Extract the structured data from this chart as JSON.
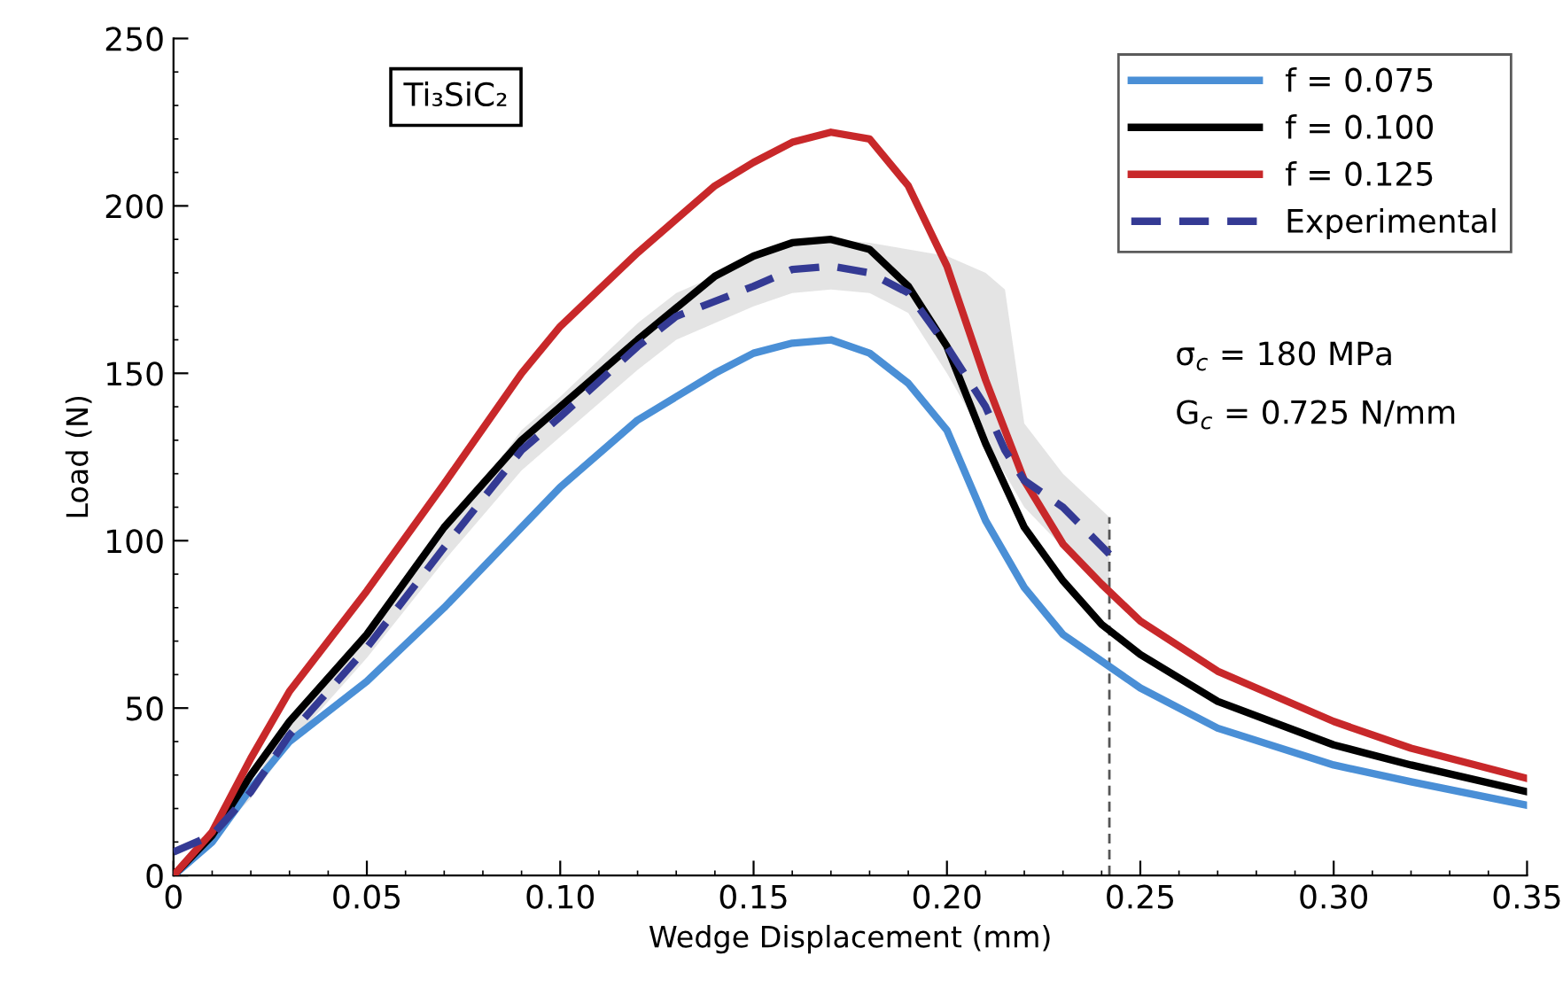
{
  "chart_data": {
    "type": "line",
    "xlabel": "Wedge Displacement (mm)",
    "ylabel": "Load (N)",
    "annotations": [
      "Ti₃SiC₂",
      "σ$_{c}$ = 180 MPa",
      "G$_{c}$ = 0.725 N/mm"
    ],
    "xlim": [
      0,
      0.35
    ],
    "ylim": [
      0,
      250
    ],
    "xticks": [
      0,
      {
        "value": 0.05,
        "label": "0.05"
      },
      {
        "value": 0.1,
        "label": "0.10"
      },
      {
        "value": 0.15,
        "label": "0.15"
      },
      {
        "value": 0.2,
        "label": "0.20"
      },
      {
        "value": 0.25,
        "label": "0.25"
      },
      {
        "value": 0.3,
        "label": "0.30"
      },
      {
        "value": 0.35,
        "label": "0.35"
      }
    ],
    "yticks": [
      0,
      50,
      100,
      150,
      200,
      250
    ],
    "grid": false,
    "legend": "top right",
    "ref_lines": [
      {
        "axis": "x",
        "value": 0.242,
        "color": "#555555",
        "line_style": "dashed"
      }
    ],
    "series": [
      {
        "name": "f = 0.075",
        "color": "#4a8fd6",
        "line_style": "solid",
        "x": [
          0,
          0.01,
          0.02,
          0.03,
          0.05,
          0.07,
          0.09,
          0.1,
          0.12,
          0.14,
          0.15,
          0.16,
          0.17,
          0.18,
          0.19,
          0.2,
          0.21,
          0.22,
          0.23,
          0.24,
          0.25,
          0.27,
          0.3,
          0.32,
          0.35
        ],
        "values": [
          0,
          10,
          26,
          40,
          58,
          80,
          104,
          116,
          136,
          150,
          156,
          159,
          160,
          156,
          147,
          133,
          106,
          86,
          72,
          64,
          56,
          44,
          33,
          28,
          21
        ]
      },
      {
        "name": "f = 0.100",
        "color": "#000000",
        "line_style": "solid",
        "x": [
          0,
          0.01,
          0.02,
          0.03,
          0.05,
          0.07,
          0.09,
          0.1,
          0.12,
          0.14,
          0.15,
          0.16,
          0.17,
          0.18,
          0.19,
          0.2,
          0.21,
          0.22,
          0.23,
          0.24,
          0.25,
          0.27,
          0.3,
          0.32,
          0.35
        ],
        "values": [
          0,
          12,
          30,
          46,
          72,
          104,
          130,
          140,
          160,
          179,
          185,
          189,
          190,
          187,
          176,
          158,
          129,
          104,
          88,
          75,
          66,
          52,
          39,
          33,
          25
        ]
      },
      {
        "name": "f = 0.125",
        "color": "#c8282a",
        "line_style": "solid",
        "x": [
          0,
          0.01,
          0.02,
          0.03,
          0.05,
          0.07,
          0.09,
          0.1,
          0.12,
          0.14,
          0.15,
          0.16,
          0.17,
          0.18,
          0.19,
          0.2,
          0.21,
          0.22,
          0.23,
          0.24,
          0.25,
          0.27,
          0.3,
          0.32,
          0.35
        ],
        "values": [
          0,
          13,
          35,
          55,
          85,
          117,
          150,
          164,
          186,
          206,
          213,
          219,
          222,
          220,
          206,
          182,
          148,
          118,
          99,
          87,
          76,
          61,
          46,
          38,
          29
        ]
      },
      {
        "name": "Experimental",
        "color": "#343a94",
        "line_style": "dashed",
        "x": [
          0,
          0.01,
          0.02,
          0.03,
          0.05,
          0.07,
          0.09,
          0.1,
          0.12,
          0.13,
          0.15,
          0.16,
          0.17,
          0.18,
          0.19,
          0.2,
          0.21,
          0.215,
          0.22,
          0.23,
          0.242
        ],
        "values": [
          7,
          12,
          25,
          42,
          68,
          98,
          127,
          137,
          158,
          167,
          176,
          181,
          182,
          180,
          174,
          158,
          140,
          127,
          118,
          110,
          96
        ],
        "lower": [
          7,
          11,
          23,
          39,
          65,
          94,
          121,
          131,
          151,
          160,
          170,
          174,
          175,
          174,
          168,
          150,
          130,
          120,
          110,
          98,
          85
        ],
        "upper": [
          7,
          13,
          27,
          45,
          71,
          102,
          133,
          143,
          165,
          174,
          184,
          188,
          190,
          189,
          187,
          185,
          180,
          175,
          135,
          120,
          107
        ]
      }
    ]
  }
}
